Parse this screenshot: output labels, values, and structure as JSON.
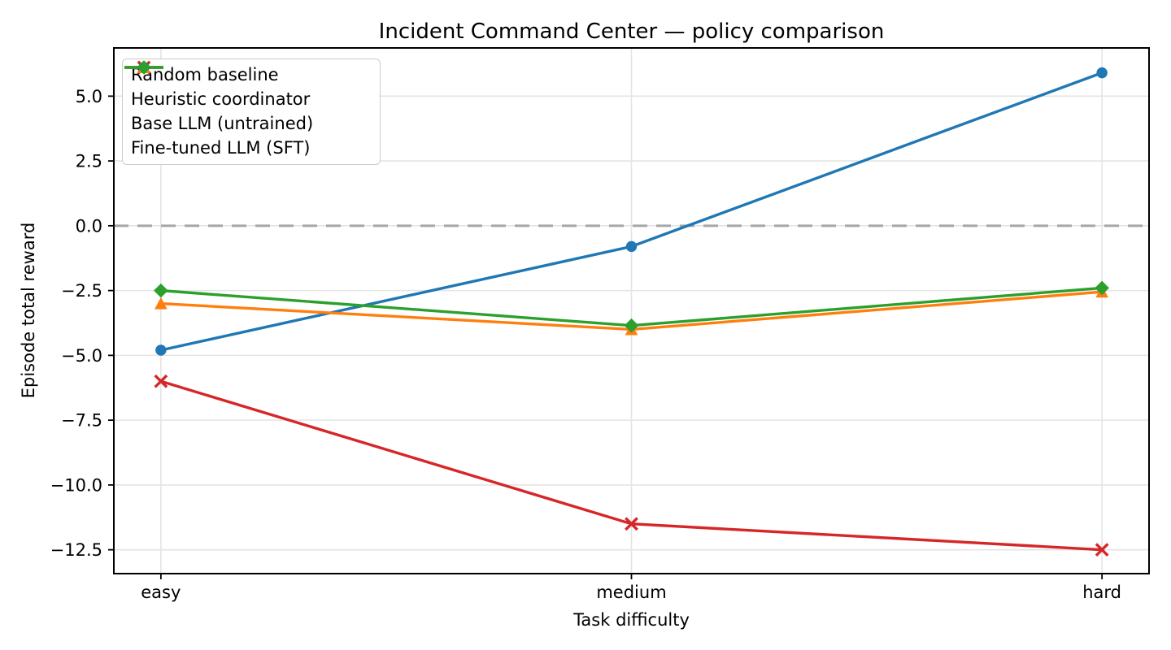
{
  "chart_data": {
    "type": "line",
    "title": "Incident Command Center — policy comparison",
    "xlabel": "Task difficulty",
    "ylabel": "Episode total reward",
    "categories": [
      "easy",
      "medium",
      "hard"
    ],
    "series": [
      {
        "name": "Random baseline",
        "color": "#d62728",
        "marker": "x",
        "values": [
          -6.0,
          -11.5,
          -12.5
        ]
      },
      {
        "name": "Heuristic coordinator",
        "color": "#1f77b4",
        "marker": "circle",
        "values": [
          -4.8,
          -0.8,
          5.9
        ]
      },
      {
        "name": "Base LLM (untrained)",
        "color": "#ff7f0e",
        "marker": "triangle",
        "values": [
          -3.0,
          -4.0,
          -2.55
        ]
      },
      {
        "name": "Fine-tuned LLM (SFT)",
        "color": "#2ca02c",
        "marker": "diamond",
        "values": [
          -2.5,
          -3.85,
          -2.4
        ]
      }
    ],
    "yticks": [
      5.0,
      2.5,
      0.0,
      -2.5,
      -5.0,
      -7.5,
      -10.0,
      -12.5
    ],
    "ytick_labels": [
      "5.0",
      "2.5",
      "0.0",
      "−2.5",
      "−5.0",
      "−7.5",
      "−10.0",
      "−12.5"
    ],
    "ylim": [
      -13.42,
      6.86
    ],
    "zero_line": 0,
    "grid": true,
    "legend_position": "upper left",
    "colors": {
      "grid": "#e4e4e4",
      "zero_line": "#a6a6a6",
      "axis": "#000000",
      "background": "#ffffff"
    }
  }
}
